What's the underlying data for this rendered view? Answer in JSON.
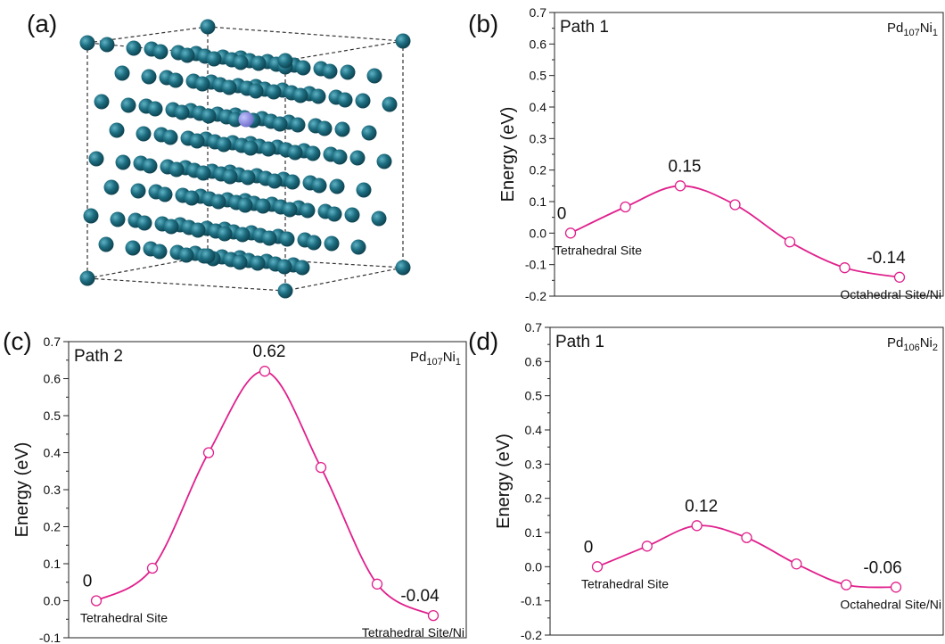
{
  "image_panel": {
    "label": "(a)"
  },
  "chart_data": [
    {
      "type": "line",
      "panel": "(b)",
      "title": "Path 1",
      "composition": [
        "Pd",
        "107",
        "Ni",
        "1"
      ],
      "ylabel": "Energy (eV)",
      "categories": [
        "Tetrahedral Site",
        null,
        null,
        null,
        null,
        null,
        "Octahedral Site/Ni"
      ],
      "series": [
        {
          "name": null,
          "color": "#e0208c",
          "values": [
            0,
            0.083,
            0.15,
            0.09,
            -0.028,
            -0.11,
            -0.14
          ],
          "value_labels": [
            "0",
            null,
            "0.15",
            null,
            null,
            null,
            "-0.14"
          ]
        }
      ],
      "ylim": [
        -0.2,
        0.7
      ],
      "yticks": [
        -0.2,
        -0.1,
        {
          "value": 0,
          "label": "0.0"
        },
        0.1,
        0.2,
        0.3,
        0.4,
        0.5,
        0.6,
        0.7
      ]
    },
    {
      "type": "line",
      "panel": "(c)",
      "title": "Path 2",
      "composition": [
        "Pd",
        "107",
        "Ni",
        "1"
      ],
      "ylabel": "Energy (eV)",
      "categories": [
        "Tetrahedral Site",
        null,
        null,
        null,
        null,
        null,
        "Tetrahedral Site/Ni"
      ],
      "series": [
        {
          "name": null,
          "color": "#e0208c",
          "values": [
            0,
            0.088,
            0.4,
            0.62,
            0.36,
            0.045,
            -0.04
          ],
          "value_labels": [
            "0",
            null,
            null,
            "0.62",
            null,
            null,
            "-0.04"
          ]
        }
      ],
      "ylim": [
        -0.1,
        0.7
      ],
      "yticks": [
        -0.1,
        {
          "value": 0,
          "label": "0.0"
        },
        0.1,
        0.2,
        0.3,
        0.4,
        0.5,
        0.6,
        0.7
      ]
    },
    {
      "type": "line",
      "panel": "(d)",
      "title": "Path 1",
      "composition": [
        "Pd",
        "106",
        "Ni",
        "2"
      ],
      "ylabel": "Energy (eV)",
      "categories": [
        "Tetrahedral Site",
        null,
        null,
        null,
        null,
        null,
        "Octahedral Site/Ni"
      ],
      "series": [
        {
          "name": null,
          "color": "#e0208c",
          "values": [
            0,
            0.06,
            0.12,
            0.085,
            0.008,
            -0.053,
            -0.06
          ],
          "value_labels": [
            "0",
            null,
            "0.12",
            null,
            null,
            null,
            "-0.06"
          ]
        }
      ],
      "ylim": [
        -0.2,
        0.7
      ],
      "yticks": [
        -0.2,
        -0.1,
        {
          "value": 0,
          "label": "0.0"
        },
        0.1,
        0.2,
        0.3,
        0.4,
        0.5,
        0.6,
        0.7
      ]
    }
  ]
}
